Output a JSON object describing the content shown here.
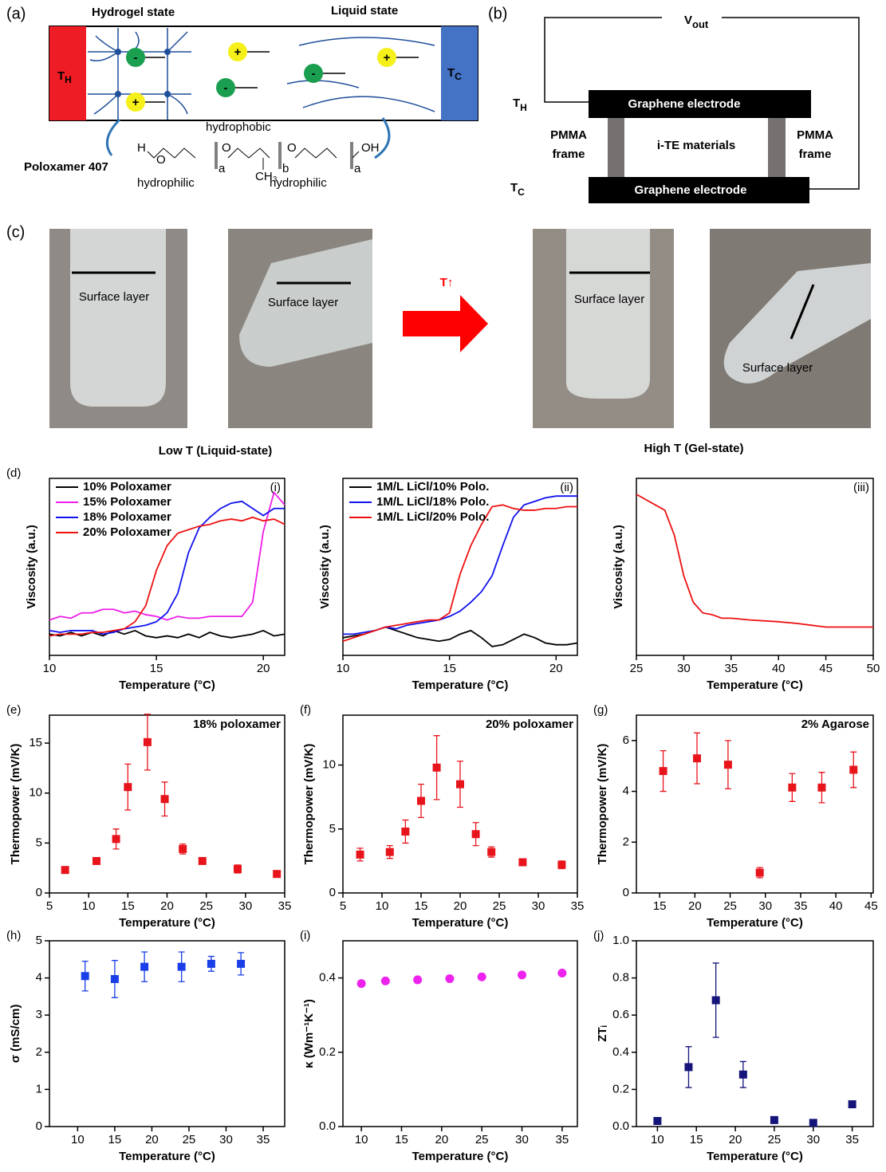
{
  "panel_a": {
    "label": "(a)",
    "hydrogel": "Hydrogel state",
    "liquid": "Liquid state",
    "hot": {
      "main": "T",
      "sub": "H"
    },
    "cold": {
      "main": "T",
      "sub": "C"
    },
    "cation": "+",
    "anion": "-",
    "hydrophobic": "hydrophobic",
    "polymer": "Poloxamer 407",
    "hydrophilic_left": "hydrophilic",
    "hydrophilic_right": "hydrophilic",
    "formula": {
      "h": "H",
      "o": "O",
      "oh": "OH",
      "a": "a",
      "b": "b",
      "methyl": "CH₃"
    }
  },
  "panel_b": {
    "label": "(b)",
    "vout": {
      "main": "V",
      "sub": "out"
    },
    "hot": {
      "main": "T",
      "sub": "H"
    },
    "cold": {
      "main": "T",
      "sub": "C"
    },
    "top_electrode": "Graphene electrode",
    "bottom_electrode": "Graphene electrode",
    "left_frame": [
      "PMMA",
      "frame"
    ],
    "right_frame": [
      "PMMA",
      "frame"
    ],
    "material": "i-TE materials"
  },
  "panel_c": {
    "label": "(c)",
    "surface_layers": [
      "Surface layer",
      "Surface layer",
      "Surface layer",
      "Surface layer"
    ],
    "heating": "T↑",
    "low": "Low T (Liquid-state)",
    "high": "High T (Gel-state)"
  },
  "chart_data": [
    {
      "type": "line",
      "label": "(d)",
      "annotation": "(i)",
      "x_label": "Temperature (°C)",
      "y_label": "Viscosity (a.u.)",
      "x": [
        10,
        10.5,
        11,
        11.5,
        12,
        12.5,
        13,
        13.5,
        14,
        14.5,
        15,
        15.5,
        16,
        16.5,
        17,
        17.5,
        18,
        18.5,
        19,
        19.5,
        20,
        20.5,
        21
      ],
      "xlim": [
        10,
        21
      ],
      "xticks": [
        10,
        15,
        20
      ],
      "ylim": [
        0,
        1
      ],
      "legend": "upper left",
      "series": [
        {
          "name": "10% Poloxamer",
          "color": "#000000",
          "values": [
            0.12,
            0.11,
            0.13,
            0.11,
            0.13,
            0.11,
            0.14,
            0.12,
            0.14,
            0.11,
            0.1,
            0.11,
            0.1,
            0.12,
            0.1,
            0.13,
            0.11,
            0.1,
            0.11,
            0.12,
            0.14,
            0.11,
            0.12
          ]
        },
        {
          "name": "15% Poloxamer",
          "color": "#ee1ee8",
          "values": [
            0.2,
            0.22,
            0.21,
            0.24,
            0.24,
            0.26,
            0.26,
            0.24,
            0.25,
            0.23,
            0.22,
            0.2,
            0.22,
            0.21,
            0.21,
            0.22,
            0.22,
            0.22,
            0.22,
            0.3,
            0.7,
            0.92,
            0.85
          ]
        },
        {
          "name": "18% Poloxamer",
          "color": "#1111ee",
          "values": [
            0.14,
            0.13,
            0.14,
            0.14,
            0.14,
            0.12,
            0.13,
            0.15,
            0.16,
            0.17,
            0.19,
            0.24,
            0.35,
            0.58,
            0.72,
            0.78,
            0.83,
            0.86,
            0.87,
            0.83,
            0.79,
            0.83,
            0.83
          ]
        },
        {
          "name": "20% Poloxamer",
          "color": "#ee1111",
          "values": [
            0.11,
            0.12,
            0.12,
            0.12,
            0.13,
            0.13,
            0.14,
            0.15,
            0.19,
            0.28,
            0.48,
            0.62,
            0.69,
            0.71,
            0.73,
            0.74,
            0.76,
            0.77,
            0.76,
            0.78,
            0.76,
            0.77,
            0.74
          ]
        }
      ]
    },
    {
      "type": "line",
      "annotation": "(ii)",
      "x_label": "Temperature (°C)",
      "y_label": "Viscosity (a.u.)",
      "x": [
        10,
        10.5,
        11,
        11.5,
        12,
        12.5,
        13,
        13.5,
        14,
        14.5,
        15,
        15.5,
        16,
        16.5,
        17,
        17.5,
        18,
        18.5,
        19,
        19.5,
        20,
        20.5,
        21
      ],
      "xlim": [
        10,
        21
      ],
      "xticks": [
        10,
        15,
        20
      ],
      "ylim": [
        0,
        1
      ],
      "legend": "upper left",
      "series": [
        {
          "name": "1M/L LiCl/10% Polo.",
          "color": "#000000",
          "values": [
            0.1,
            0.11,
            0.12,
            0.14,
            0.16,
            0.14,
            0.12,
            0.1,
            0.09,
            0.08,
            0.09,
            0.12,
            0.14,
            0.1,
            0.05,
            0.06,
            0.09,
            0.12,
            0.1,
            0.07,
            0.06,
            0.06,
            0.07
          ]
        },
        {
          "name": "1M/L LiCl/18% Polo.",
          "color": "#1111ee",
          "values": [
            0.12,
            0.12,
            0.13,
            0.14,
            0.16,
            0.15,
            0.17,
            0.18,
            0.19,
            0.2,
            0.22,
            0.25,
            0.3,
            0.36,
            0.45,
            0.62,
            0.78,
            0.85,
            0.87,
            0.89,
            0.9,
            0.9,
            0.9
          ]
        },
        {
          "name": "1M/L LiCl/20% Polo.",
          "color": "#ee1111",
          "values": [
            0.08,
            0.1,
            0.12,
            0.14,
            0.16,
            0.17,
            0.18,
            0.19,
            0.2,
            0.2,
            0.24,
            0.46,
            0.62,
            0.74,
            0.84,
            0.85,
            0.83,
            0.82,
            0.82,
            0.83,
            0.83,
            0.84,
            0.84
          ]
        }
      ]
    },
    {
      "type": "line",
      "annotation": "(iii)",
      "x_label": "Temperature (°C)",
      "y_label": "Viscosity (a.u.)",
      "x": [
        25,
        27,
        28,
        29,
        30,
        31,
        32,
        33,
        34,
        35,
        37,
        40,
        42,
        45,
        47,
        50
      ],
      "xlim": [
        25,
        50
      ],
      "xticks": [
        25,
        30,
        35,
        40,
        45,
        50
      ],
      "ylim": [
        0,
        1
      ],
      "series": [
        {
          "color": "#ee1111",
          "values": [
            0.91,
            0.85,
            0.82,
            0.68,
            0.45,
            0.3,
            0.24,
            0.23,
            0.21,
            0.21,
            0.2,
            0.19,
            0.18,
            0.16,
            0.16,
            0.16
          ]
        }
      ]
    },
    {
      "type": "scatter",
      "label": "(e)",
      "annotation": "18% poloxamer",
      "marker": "square",
      "x_label": "Temperature (°C)",
      "y_label": "Thermopower (mV/K)",
      "x": [
        7,
        11,
        13.5,
        15,
        17.5,
        19.7,
        22,
        24.5,
        29,
        34
      ],
      "xlim": [
        5,
        35
      ],
      "xticks": [
        5,
        10,
        15,
        20,
        25,
        30,
        35
      ],
      "ylim": [
        0,
        17.8
      ],
      "yticks": [
        0,
        5,
        10,
        15
      ],
      "series": [
        {
          "color": "#e8141c",
          "values": [
            2.3,
            3.2,
            5.4,
            10.6,
            15.1,
            9.4,
            4.4,
            3.2,
            2.4,
            1.9
          ],
          "errors": [
            0.2,
            0.3,
            1.0,
            2.3,
            2.8,
            1.7,
            0.5,
            0.3,
            0.4,
            0.2
          ]
        }
      ]
    },
    {
      "type": "scatter",
      "label": "(f)",
      "annotation": "20% poloxamer",
      "marker": "square",
      "x_label": "Temperature (°C)",
      "y_label": "Thermopower (mV/K)",
      "x": [
        7.2,
        11,
        13,
        15,
        17,
        20,
        22,
        24,
        28,
        33
      ],
      "xlim": [
        5,
        35
      ],
      "xticks": [
        5,
        10,
        15,
        20,
        25,
        30,
        35
      ],
      "ylim": [
        0,
        13.9
      ],
      "yticks": [
        0,
        5,
        10
      ],
      "series": [
        {
          "color": "#e8141c",
          "values": [
            3.0,
            3.2,
            4.8,
            7.2,
            9.8,
            8.5,
            4.6,
            3.2,
            2.4,
            2.2
          ],
          "errors": [
            0.5,
            0.5,
            0.9,
            1.3,
            2.5,
            1.8,
            0.9,
            0.4,
            0.2,
            0.3
          ]
        }
      ]
    },
    {
      "type": "scatter",
      "label": "(g)",
      "annotation": "2% Agarose",
      "marker": "square",
      "x_label": "Temperature (°C)",
      "y_label": "Thermopower (mV/K)",
      "x": [
        15.5,
        20.3,
        24.7,
        29.2,
        33.8,
        38,
        42.5
      ],
      "xlim": [
        11.7,
        45.3
      ],
      "xticks": [
        15,
        20,
        25,
        30,
        35,
        40,
        45
      ],
      "ylim": [
        0,
        7
      ],
      "yticks": [
        0,
        2,
        4,
        6
      ],
      "series": [
        {
          "color": "#e8141c",
          "values": [
            4.8,
            5.3,
            5.05,
            0.8,
            4.15,
            4.15,
            4.85
          ],
          "errors": [
            0.8,
            1.0,
            0.95,
            0.2,
            0.55,
            0.6,
            0.7
          ]
        }
      ]
    },
    {
      "type": "scatter",
      "label": "(h)",
      "marker": "square",
      "x_label": "Temperature (°C)",
      "y_label": "σ (mS/cm)",
      "x": [
        11,
        15,
        19,
        24,
        28,
        32
      ],
      "xlim": [
        6.2,
        37.9
      ],
      "xticks": [
        10,
        15,
        20,
        25,
        30,
        35
      ],
      "ylim": [
        0,
        5
      ],
      "yticks": [
        0,
        1,
        2,
        3,
        4,
        5
      ],
      "series": [
        {
          "color": "#1a3ee8",
          "values": [
            4.05,
            3.97,
            4.3,
            4.3,
            4.38,
            4.38
          ],
          "errors": [
            0.4,
            0.5,
            0.4,
            0.4,
            0.2,
            0.3
          ]
        }
      ]
    },
    {
      "type": "scatter",
      "label": "(i)",
      "marker": "circle",
      "x_label": "Temperature (°C)",
      "y_label": "κ (Wm⁻¹K⁻¹)",
      "x": [
        10,
        13,
        17,
        21,
        25,
        30,
        35
      ],
      "xlim": [
        7.7,
        36.9
      ],
      "xticks": [
        10,
        15,
        20,
        25,
        30,
        35
      ],
      "ylim": [
        0,
        0.5
      ],
      "yticks": [
        {
          "value": 0,
          "label": "0.0"
        },
        0.2,
        0.4
      ],
      "series": [
        {
          "color": "#ee22ee",
          "values": [
            0.385,
            0.392,
            0.395,
            0.398,
            0.403,
            0.408,
            0.413
          ]
        }
      ]
    },
    {
      "type": "scatter",
      "label": "(j)",
      "marker": "square",
      "x_label": "Temperature (°C)",
      "y_label": "ZTᵢ",
      "x": [
        10,
        14,
        17.5,
        21,
        25,
        30,
        35
      ],
      "xlim": [
        7.3,
        37.7
      ],
      "xticks": [
        10,
        15,
        20,
        25,
        30,
        35
      ],
      "ylim": [
        0,
        1
      ],
      "yticks": [
        {
          "value": 0,
          "label": "0.0"
        },
        0.2,
        0.4,
        0.6,
        0.8,
        {
          "value": 1,
          "label": "1.0"
        }
      ],
      "series": [
        {
          "color": "#14147a",
          "values": [
            0.03,
            0.32,
            0.68,
            0.28,
            0.035,
            0.02,
            0.12
          ],
          "errors": [
            0.01,
            0.11,
            0.2,
            0.07,
            0.01,
            0.01,
            0.01
          ]
        }
      ]
    }
  ]
}
